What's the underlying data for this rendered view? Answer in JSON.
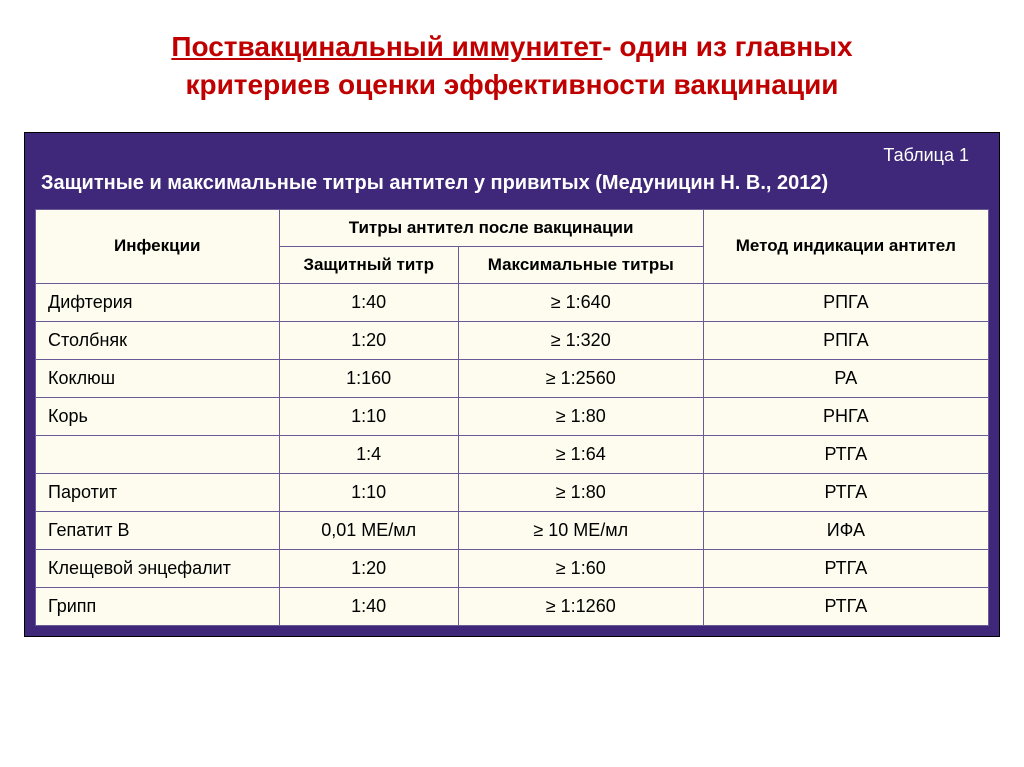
{
  "title": {
    "underlined": "Поствакцинальный иммунитет",
    "rest1": "- один из главных",
    "line2": "критериев оценки эффективности вакцинации"
  },
  "table": {
    "label": "Таблица 1",
    "caption": "Защитные и максимальные титры антител у привитых (Медуницин Н. В., 2012)",
    "header": {
      "infections": "Инфекции",
      "titers_group": "Титры антител после вакцинации",
      "protective": "Защитный титр",
      "maximal": "Максимальные титры",
      "method": "Метод индикации антител"
    },
    "rows": [
      {
        "infection": "Дифтерия",
        "protective": "1:40",
        "maximal": "≥ 1:640",
        "method": "РПГА"
      },
      {
        "infection": "Столбняк",
        "protective": "1:20",
        "maximal": "≥ 1:320",
        "method": "РПГА"
      },
      {
        "infection": "Коклюш",
        "protective": "1:160",
        "maximal": "≥ 1:2560",
        "method": "РА"
      },
      {
        "infection": "Корь",
        "protective": "1:10",
        "maximal": "≥ 1:80",
        "method": "РНГА"
      },
      {
        "infection": "",
        "protective": "1:4",
        "maximal": "≥ 1:64",
        "method": "РТГА"
      },
      {
        "infection": "Паротит",
        "protective": "1:10",
        "maximal": "≥ 1:80",
        "method": "РТГА"
      },
      {
        "infection": "Гепатит В",
        "protective": "0,01 МЕ/мл",
        "maximal": "≥ 10 МЕ/мл",
        "method": "ИФА"
      },
      {
        "infection": "Клещевой энцефалит",
        "protective": "1:20",
        "maximal": "≥ 1:60",
        "method": "РТГА"
      },
      {
        "infection": "Грипп",
        "protective": "1:40",
        "maximal": "≥ 1:1260",
        "method": "РТГА"
      }
    ]
  },
  "style": {
    "title_color": "#c00000",
    "table_bg": "#3f277a",
    "cell_bg": "#fdfcee",
    "border_color": "#6a5a95"
  }
}
